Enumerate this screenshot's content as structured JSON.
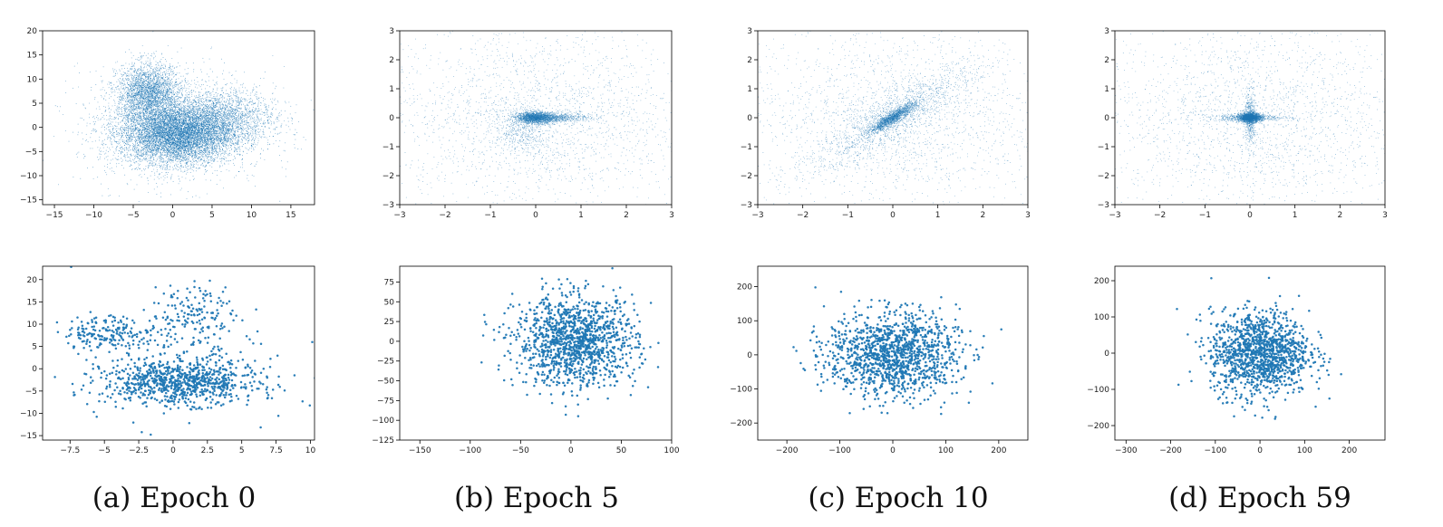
{
  "figure": {
    "captions": [
      "(a) Epoch 0",
      "(b) Epoch 5",
      "(c) Epoch 10",
      "(d) Epoch 59"
    ],
    "colors": {
      "marker": "#1f77b4",
      "axes": "#000000",
      "background": "#ffffff"
    }
  },
  "chart_data": [
    {
      "type": "scatter",
      "panel": "a",
      "row": "top",
      "caption": "(a) Epoch 0",
      "density": "dense",
      "xlim": [
        -16.5,
        18
      ],
      "ylim": [
        -16,
        20
      ],
      "xticks": [
        -15,
        -10,
        -5,
        0,
        5,
        10,
        15
      ],
      "yticks": [
        -15,
        -10,
        -5,
        0,
        5,
        10,
        15,
        20
      ],
      "clusters": [
        {
          "center": [
            0.5,
            -1.5
          ],
          "spread": [
            3.5,
            3.0
          ],
          "weight": 0.55
        },
        {
          "center": [
            -3,
            7
          ],
          "spread": [
            2.0,
            3.0
          ],
          "weight": 0.2
        },
        {
          "center": [
            6,
            2
          ],
          "spread": [
            3.5,
            3.0
          ],
          "weight": 0.15
        },
        {
          "center": [
            0,
            0
          ],
          "spread": [
            6.0,
            6.0
          ],
          "weight": 0.1
        }
      ],
      "title": "",
      "xlabel": "",
      "ylabel": "",
      "grid": false
    },
    {
      "type": "scatter",
      "panel": "b",
      "row": "top",
      "caption": "(b) Epoch 5",
      "density": "sparse",
      "xlim": [
        -3,
        3
      ],
      "ylim": [
        -3,
        3
      ],
      "xticks": [
        -3,
        -2,
        -1,
        0,
        1,
        2,
        3
      ],
      "yticks": [
        -3,
        -2,
        -1,
        0,
        1,
        2,
        3
      ],
      "clusters": [
        {
          "center": [
            0,
            0
          ],
          "spread": [
            0.2,
            0.1
          ],
          "weight": 0.3
        },
        {
          "center": [
            0.4,
            0.0
          ],
          "spread": [
            0.4,
            0.08
          ],
          "weight": 0.15
        },
        {
          "center": [
            -0.3,
            -0.4
          ],
          "spread": [
            0.3,
            0.4
          ],
          "weight": 0.1
        },
        {
          "center": [
            0,
            0
          ],
          "spread": [
            1.8,
            1.6
          ],
          "weight": 0.45
        }
      ],
      "title": "",
      "xlabel": "",
      "ylabel": "",
      "grid": false
    },
    {
      "type": "scatter",
      "panel": "c",
      "row": "top",
      "caption": "(c) Epoch 10",
      "density": "sparse",
      "xlim": [
        -3,
        3
      ],
      "ylim": [
        -3,
        3
      ],
      "xticks": [
        -3,
        -2,
        -1,
        0,
        1,
        2,
        3
      ],
      "yticks": [
        -3,
        -2,
        -1,
        0,
        1,
        2,
        3
      ],
      "clusters": [
        {
          "center": [
            0,
            0
          ],
          "spread": [
            0.25,
            0.25
          ],
          "weight": 0.3,
          "correlation": 0.9
        },
        {
          "center": [
            0,
            0
          ],
          "spread": [
            0.9,
            0.9
          ],
          "weight": 0.3,
          "correlation": 0.85
        },
        {
          "center": [
            0,
            0
          ],
          "spread": [
            1.8,
            1.6
          ],
          "weight": 0.4
        }
      ],
      "title": "",
      "xlabel": "",
      "ylabel": "",
      "grid": false
    },
    {
      "type": "scatter",
      "panel": "d",
      "row": "top",
      "caption": "(d) Epoch 59",
      "density": "sparse",
      "xlim": [
        -3,
        3
      ],
      "ylim": [
        -3,
        3
      ],
      "xticks": [
        -3,
        -2,
        -1,
        0,
        1,
        2,
        3
      ],
      "yticks": [
        -3,
        -2,
        -1,
        0,
        1,
        2,
        3
      ],
      "clusters": [
        {
          "center": [
            0,
            0
          ],
          "spread": [
            0.12,
            0.08
          ],
          "weight": 0.35
        },
        {
          "center": [
            0,
            0
          ],
          "spread": [
            0.45,
            0.06
          ],
          "weight": 0.1
        },
        {
          "center": [
            0,
            0
          ],
          "spread": [
            0.06,
            0.45
          ],
          "weight": 0.1
        },
        {
          "center": [
            0,
            0
          ],
          "spread": [
            1.8,
            1.7
          ],
          "weight": 0.45
        }
      ],
      "title": "",
      "xlabel": "",
      "ylabel": "",
      "grid": false
    },
    {
      "type": "scatter",
      "panel": "a",
      "row": "bottom",
      "caption": "(a) Epoch 0",
      "density": "points",
      "xlim": [
        -9.5,
        10.3
      ],
      "ylim": [
        -16,
        23
      ],
      "xticks": [
        -7.5,
        -5.0,
        -2.5,
        0.0,
        2.5,
        5.0,
        7.5,
        10.0
      ],
      "yticks": [
        -15,
        -10,
        -5,
        0,
        5,
        10,
        15,
        20
      ],
      "clusters": [
        {
          "center": [
            0.5,
            -3
          ],
          "spread": [
            2.8,
            2.5
          ],
          "weight": 0.65
        },
        {
          "center": [
            -4.5,
            8
          ],
          "spread": [
            1.8,
            2.0
          ],
          "weight": 0.15
        },
        {
          "center": [
            1.5,
            12
          ],
          "spread": [
            1.5,
            4.0
          ],
          "weight": 0.12
        },
        {
          "center": [
            0,
            0
          ],
          "spread": [
            5.0,
            8.0
          ],
          "weight": 0.08
        }
      ],
      "title": "",
      "xlabel": "",
      "ylabel": "",
      "grid": false
    },
    {
      "type": "scatter",
      "panel": "b",
      "row": "bottom",
      "caption": "(b) Epoch 5",
      "density": "points",
      "xlim": [
        -170,
        100
      ],
      "ylim": [
        -125,
        95
      ],
      "xticks": [
        -150,
        -100,
        -50,
        0,
        50,
        100
      ],
      "yticks": [
        -125,
        -100,
        -75,
        -50,
        -25,
        0,
        25,
        50,
        75
      ],
      "clusters": [
        {
          "center": [
            5,
            0
          ],
          "spread": [
            30,
            28
          ],
          "weight": 1.0
        }
      ],
      "title": "",
      "xlabel": "",
      "ylabel": "",
      "grid": false
    },
    {
      "type": "scatter",
      "panel": "c",
      "row": "bottom",
      "caption": "(c) Epoch 10",
      "density": "points",
      "xlim": [
        -255,
        255
      ],
      "ylim": [
        -250,
        260
      ],
      "xticks": [
        -200,
        -100,
        0,
        100,
        200
      ],
      "yticks": [
        -200,
        -100,
        0,
        100,
        200
      ],
      "clusters": [
        {
          "center": [
            0,
            0
          ],
          "spread": [
            62,
            62
          ],
          "weight": 1.0
        }
      ],
      "title": "",
      "xlabel": "",
      "ylabel": "",
      "grid": false
    },
    {
      "type": "scatter",
      "panel": "d",
      "row": "bottom",
      "caption": "(d) Epoch 59",
      "density": "points",
      "xlim": [
        -325,
        280
      ],
      "ylim": [
        -240,
        240
      ],
      "xticks": [
        -300,
        -200,
        -100,
        0,
        100,
        200
      ],
      "yticks": [
        -200,
        -100,
        0,
        100,
        200
      ],
      "clusters": [
        {
          "center": [
            0,
            0
          ],
          "spread": [
            55,
            58
          ],
          "weight": 1.0
        }
      ],
      "title": "",
      "xlabel": "",
      "ylabel": "",
      "grid": false
    }
  ]
}
